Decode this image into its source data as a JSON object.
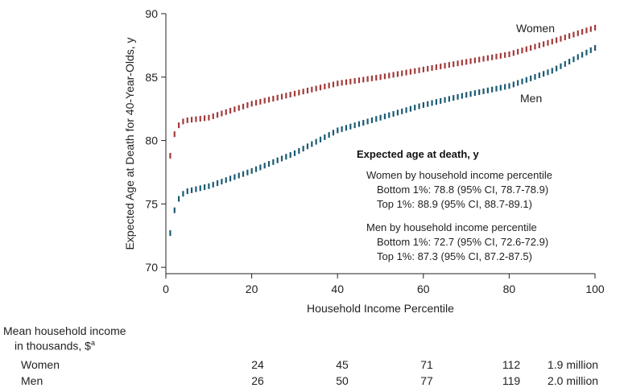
{
  "chart_data": {
    "type": "scatter",
    "xlabel": "Household Income Percentile",
    "ylabel": "Expected Age at Death for 40-Year-Olds, y",
    "xlim": [
      0,
      100
    ],
    "ylim": [
      69.5,
      90
    ],
    "xticks": [
      0,
      20,
      40,
      60,
      80,
      100
    ],
    "yticks": [
      70,
      75,
      80,
      85,
      90
    ],
    "grid": false,
    "series": [
      {
        "name": "Women",
        "color": "#a23a3a",
        "anchors": [
          [
            1,
            78.8
          ],
          [
            2,
            80.5
          ],
          [
            3,
            81.2
          ],
          [
            4,
            81.5
          ],
          [
            5,
            81.6
          ],
          [
            10,
            81.8
          ],
          [
            20,
            82.9
          ],
          [
            40,
            84.5
          ],
          [
            50,
            85.0
          ],
          [
            60,
            85.6
          ],
          [
            70,
            86.2
          ],
          [
            80,
            86.8
          ],
          [
            90,
            87.8
          ],
          [
            100,
            88.9
          ]
        ]
      },
      {
        "name": "Men",
        "color": "#1a5a72",
        "anchors": [
          [
            1,
            72.7
          ],
          [
            2,
            74.5
          ],
          [
            3,
            75.4
          ],
          [
            4,
            75.8
          ],
          [
            5,
            76.0
          ],
          [
            10,
            76.4
          ],
          [
            20,
            77.6
          ],
          [
            30,
            79.0
          ],
          [
            40,
            80.8
          ],
          [
            50,
            81.8
          ],
          [
            60,
            82.8
          ],
          [
            70,
            83.6
          ],
          [
            80,
            84.3
          ],
          [
            90,
            85.5
          ],
          [
            100,
            87.3
          ]
        ]
      }
    ],
    "annotation": {
      "heading": "Expected age at death, y",
      "women_heading": "Women by household income percentile",
      "women_bottom": "Bottom 1%: 78.8 (95% CI, 78.7-78.9)",
      "women_top": "Top 1%: 88.9 (95% CI, 88.7-89.1)",
      "men_heading": "Men by household income percentile",
      "men_bottom": "Bottom 1%: 72.7 (95% CI, 72.6-72.9)",
      "men_top": "Top 1%: 87.3 (95% CI, 87.2-87.5)"
    }
  },
  "table": {
    "title_line1": "Mean household income",
    "title_line2": "in thousands, $",
    "title_sup": "a",
    "women_label": "Women",
    "men_label": "Men",
    "women_values": [
      "24",
      "45",
      "71",
      "112",
      "1.9 million"
    ],
    "men_values": [
      "26",
      "50",
      "77",
      "119",
      "2.0 million"
    ]
  }
}
